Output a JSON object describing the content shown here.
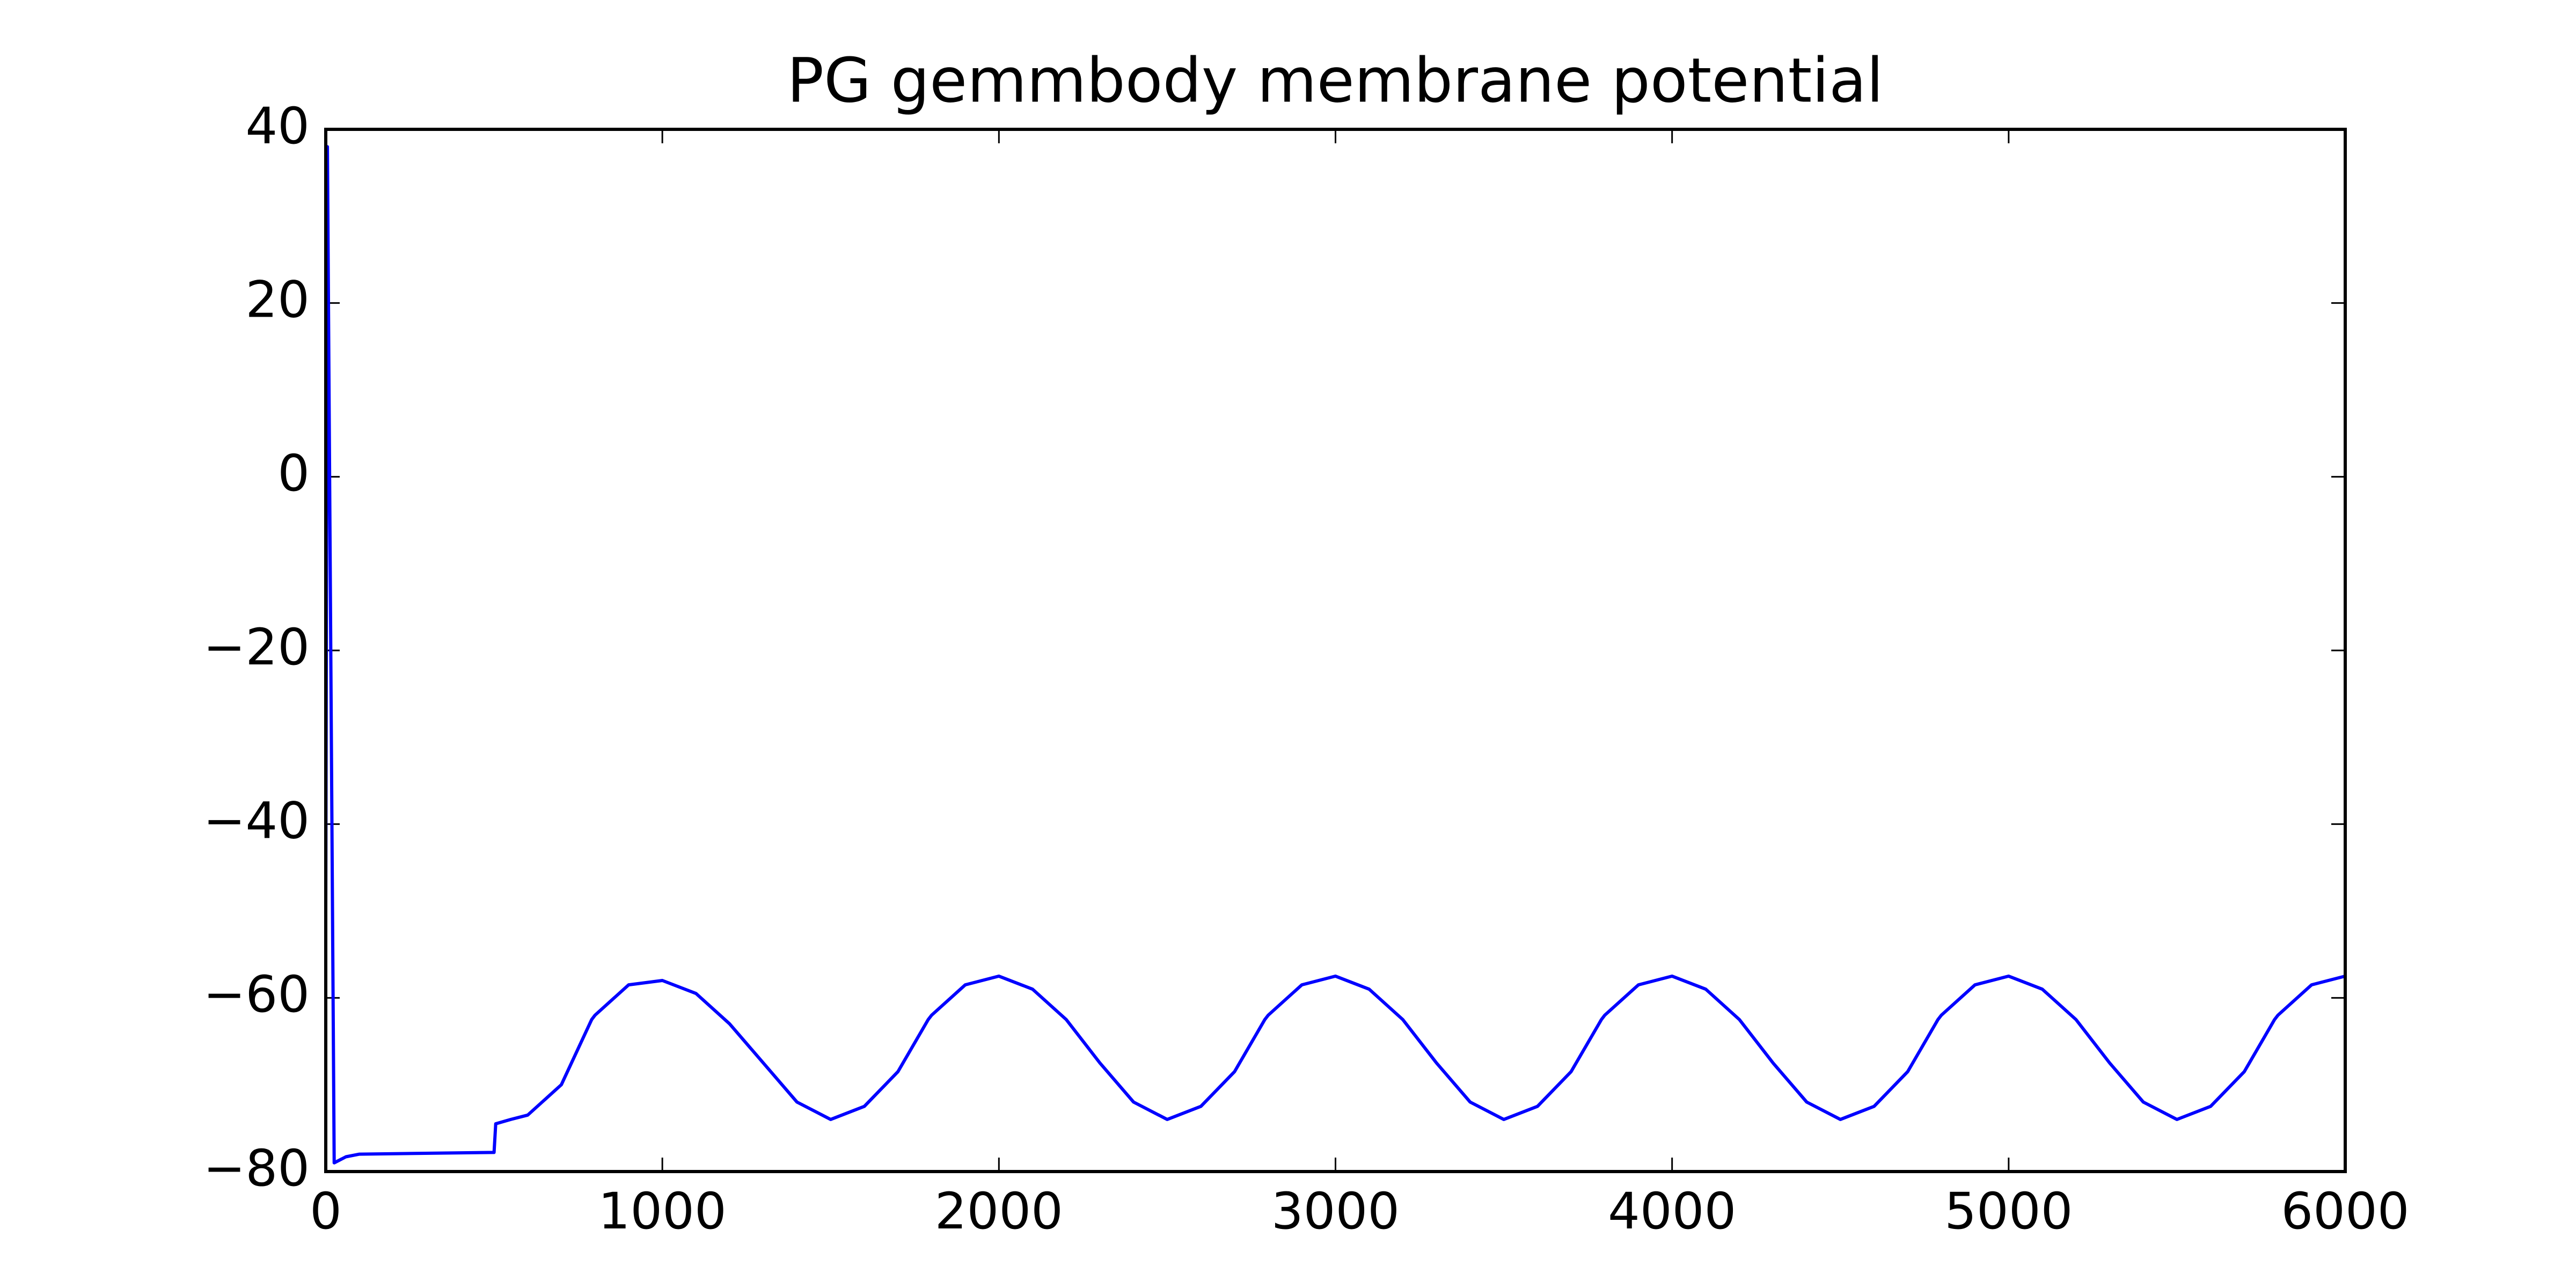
{
  "chart_data": {
    "type": "line",
    "title": "PG gemmbody membrane potential",
    "x": [
      0,
      5,
      25,
      60,
      100,
      500,
      505,
      550,
      600,
      700,
      790,
      800,
      900,
      1000,
      1100,
      1200,
      1300,
      1400,
      1500,
      1600,
      1700,
      1790,
      1800,
      1900,
      2000,
      2100,
      2200,
      2300,
      2400,
      2500,
      2600,
      2700,
      2790,
      2800,
      2900,
      3000,
      3100,
      3200,
      3300,
      3400,
      3500,
      3600,
      3700,
      3790,
      3800,
      3900,
      4000,
      4100,
      4200,
      4300,
      4400,
      4500,
      4600,
      4700,
      4790,
      4800,
      4900,
      5000,
      5100,
      5200,
      5300,
      5400,
      5500,
      5600,
      5700,
      5790,
      5800,
      5900,
      6000
    ],
    "series": [
      {
        "color": "#0000ff",
        "values": [
          -50,
          38,
          -79,
          -78.3,
          -78,
          -77.8,
          -74.5,
          -74,
          -73.5,
          -70,
          -62.5,
          -62,
          -58.5,
          -58,
          -59.5,
          -63,
          -67.5,
          -72,
          -74,
          -72.5,
          -68.5,
          -62.5,
          -62,
          -58.5,
          -57.5,
          -59,
          -62.5,
          -67.5,
          -72,
          -74,
          -72.5,
          -68.5,
          -62.5,
          -62,
          -58.5,
          -57.5,
          -59,
          -62.5,
          -67.5,
          -72,
          -74,
          -72.5,
          -68.5,
          -62.5,
          -62,
          -58.5,
          -57.5,
          -59,
          -62.5,
          -67.5,
          -72,
          -74,
          -72.5,
          -68.5,
          -62.5,
          -62,
          -58.5,
          -57.5,
          -59,
          -62.5,
          -67.5,
          -72,
          -74,
          -72.5,
          -68.5,
          -62.5,
          -62,
          -58.5,
          -57.5
        ]
      }
    ],
    "xlim": [
      0,
      6000
    ],
    "xticks": [
      0,
      1000,
      2000,
      3000,
      4000,
      5000,
      6000
    ],
    "ylim": [
      -80,
      40
    ],
    "yticks": [
      {
        "value": -80,
        "label": "−80"
      },
      {
        "value": -60,
        "label": "−60"
      },
      {
        "value": -40,
        "label": "−40"
      },
      {
        "value": -20,
        "label": "−20"
      },
      0,
      20,
      40
    ]
  }
}
